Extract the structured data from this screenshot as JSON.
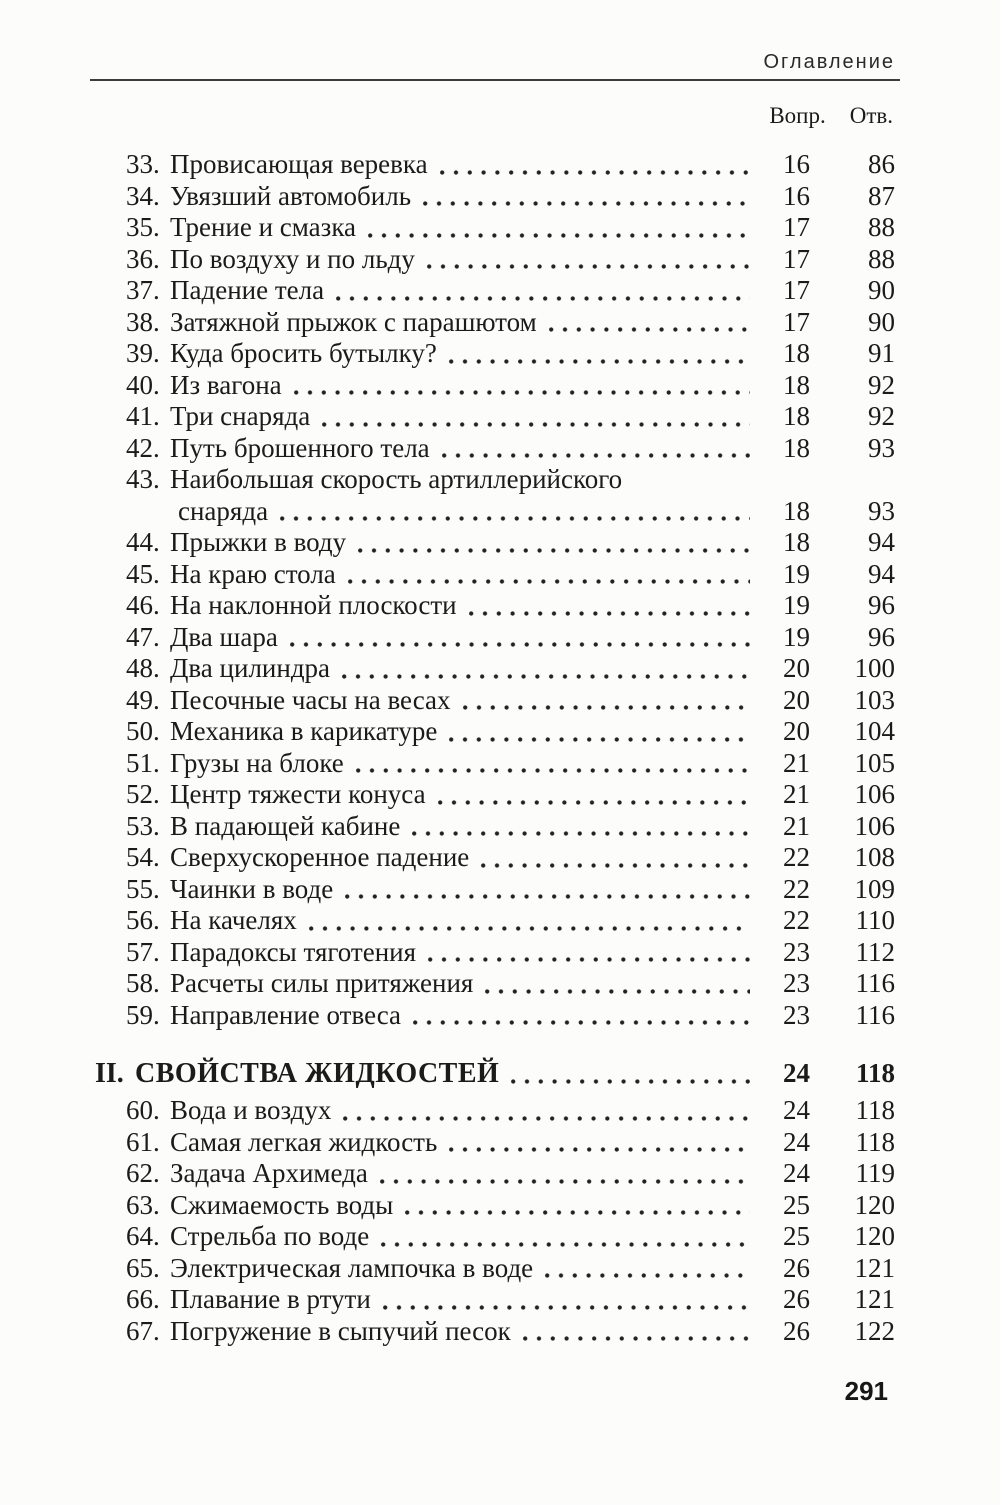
{
  "page": {
    "running_head": "Оглавление",
    "col_headers": {
      "questions": "Вопр.",
      "answers": "Отв."
    },
    "page_number": "291"
  },
  "toc": {
    "entries": [
      {
        "num": "33.",
        "title": "Провисающая веревка",
        "q": "16",
        "a": "86"
      },
      {
        "num": "34.",
        "title": "Увязший автомобиль",
        "q": "16",
        "a": "87"
      },
      {
        "num": "35.",
        "title": "Трение и смазка",
        "q": "17",
        "a": "88"
      },
      {
        "num": "36.",
        "title": "По воздуху и по льду",
        "q": "17",
        "a": "88"
      },
      {
        "num": "37.",
        "title": "Падение тела",
        "q": "17",
        "a": "90"
      },
      {
        "num": "38.",
        "title": "Затяжной прыжок с парашютом",
        "q": "17",
        "a": "90"
      },
      {
        "num": "39.",
        "title": "Куда бросить бутылку?",
        "q": "18",
        "a": "91"
      },
      {
        "num": "40.",
        "title": "Из вагона",
        "q": "18",
        "a": "92"
      },
      {
        "num": "41.",
        "title": "Три снаряда",
        "q": "18",
        "a": "92"
      },
      {
        "num": "42.",
        "title": "Путь брошенного тела",
        "q": "18",
        "a": "93"
      },
      {
        "num": "43.",
        "title": "Наибольшая скорость артиллерийского",
        "continuation": "снаряда",
        "q": "18",
        "a": "93"
      },
      {
        "num": "44.",
        "title": "Прыжки в воду",
        "q": "18",
        "a": "94"
      },
      {
        "num": "45.",
        "title": "На краю стола",
        "q": "19",
        "a": "94"
      },
      {
        "num": "46.",
        "title": "На наклонной плоскости",
        "q": "19",
        "a": "96"
      },
      {
        "num": "47.",
        "title": "Два шара",
        "q": "19",
        "a": "96"
      },
      {
        "num": "48.",
        "title": "Два цилиндра",
        "q": "20",
        "a": "100"
      },
      {
        "num": "49.",
        "title": "Песочные часы на весах",
        "q": "20",
        "a": "103"
      },
      {
        "num": "50.",
        "title": "Механика в карикатуре",
        "q": "20",
        "a": "104"
      },
      {
        "num": "51.",
        "title": "Грузы на блоке",
        "q": "21",
        "a": "105"
      },
      {
        "num": "52.",
        "title": "Центр тяжести конуса",
        "q": "21",
        "a": "106"
      },
      {
        "num": "53.",
        "title": "В падающей кабине",
        "q": "21",
        "a": "106"
      },
      {
        "num": "54.",
        "title": "Сверхускоренное падение",
        "q": "22",
        "a": "108"
      },
      {
        "num": "55.",
        "title": "Чаинки в воде",
        "q": "22",
        "a": "109"
      },
      {
        "num": "56.",
        "title": "На качелях",
        "q": "22",
        "a": "110"
      },
      {
        "num": "57.",
        "title": "Парадоксы тяготения",
        "q": "23",
        "a": "112"
      },
      {
        "num": "58.",
        "title": "Расчеты силы притяжения",
        "q": "23",
        "a": "116"
      },
      {
        "num": "59.",
        "title": "Направление отвеса",
        "q": "23",
        "a": "116"
      },
      {
        "type": "section",
        "num": "II.",
        "title": "СВОЙСТВА ЖИДКОСТЕЙ",
        "q": "24",
        "a": "118"
      },
      {
        "num": "60.",
        "title": "Вода и воздух",
        "q": "24",
        "a": "118"
      },
      {
        "num": "61.",
        "title": "Самая легкая жидкость",
        "q": "24",
        "a": "118"
      },
      {
        "num": "62.",
        "title": "Задача Архимеда",
        "q": "24",
        "a": "119"
      },
      {
        "num": "63.",
        "title": "Сжимаемость воды",
        "q": "25",
        "a": "120"
      },
      {
        "num": "64.",
        "title": "Стрельба по воде",
        "q": "25",
        "a": "120"
      },
      {
        "num": "65.",
        "title": "Электрическая лампочка в воде",
        "q": "26",
        "a": "121"
      },
      {
        "num": "66.",
        "title": "Плавание в ртути",
        "q": "26",
        "a": "121"
      },
      {
        "num": "67.",
        "title": "Погружение в сыпучий песок",
        "q": "26",
        "a": "122"
      }
    ]
  }
}
